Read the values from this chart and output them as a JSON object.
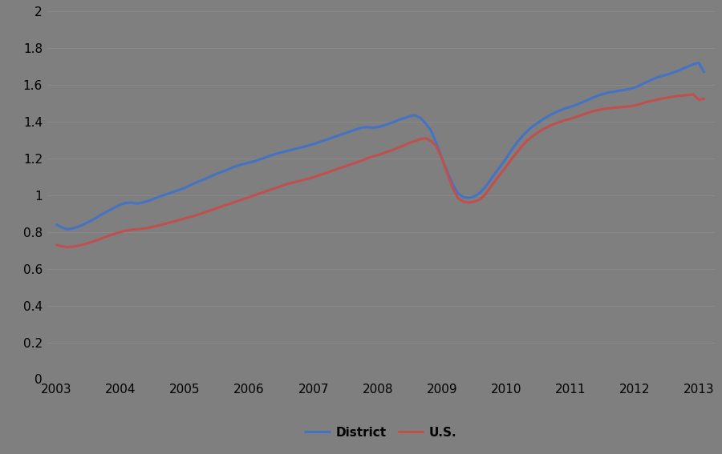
{
  "background_color": "#7f7f7f",
  "plot_bg_color": "#7f7f7f",
  "district_color": "#4472C4",
  "us_color": "#C0504D",
  "district_linewidth": 2.2,
  "us_linewidth": 2.2,
  "ylim": [
    0,
    2.0
  ],
  "xlim_start": 2002.85,
  "xlim_end": 2013.25,
  "yticks": [
    0,
    0.2,
    0.4,
    0.6,
    0.8,
    1.0,
    1.2,
    1.4,
    1.6,
    1.8,
    2.0
  ],
  "xtick_labels": [
    "2003",
    "2004",
    "2005",
    "2006",
    "2007",
    "2008",
    "2009",
    "2010",
    "2011",
    "2012",
    "2013"
  ],
  "xtick_positions": [
    2003,
    2004,
    2005,
    2006,
    2007,
    2008,
    2009,
    2010,
    2011,
    2012,
    2013
  ],
  "legend_labels": [
    "District",
    "U.S."
  ],
  "district_x": [
    2003.0,
    2003.083,
    2003.167,
    2003.25,
    2003.333,
    2003.417,
    2003.5,
    2003.583,
    2003.667,
    2003.75,
    2003.833,
    2003.917,
    2004.0,
    2004.083,
    2004.167,
    2004.25,
    2004.333,
    2004.417,
    2004.5,
    2004.583,
    2004.667,
    2004.75,
    2004.833,
    2004.917,
    2005.0,
    2005.083,
    2005.167,
    2005.25,
    2005.333,
    2005.417,
    2005.5,
    2005.583,
    2005.667,
    2005.75,
    2005.833,
    2005.917,
    2006.0,
    2006.083,
    2006.167,
    2006.25,
    2006.333,
    2006.417,
    2006.5,
    2006.583,
    2006.667,
    2006.75,
    2006.833,
    2006.917,
    2007.0,
    2007.083,
    2007.167,
    2007.25,
    2007.333,
    2007.417,
    2007.5,
    2007.583,
    2007.667,
    2007.75,
    2007.833,
    2007.917,
    2008.0,
    2008.083,
    2008.167,
    2008.25,
    2008.333,
    2008.417,
    2008.5,
    2008.583,
    2008.667,
    2008.75,
    2008.833,
    2008.917,
    2009.0,
    2009.083,
    2009.167,
    2009.25,
    2009.333,
    2009.417,
    2009.5,
    2009.583,
    2009.667,
    2009.75,
    2009.833,
    2009.917,
    2010.0,
    2010.083,
    2010.167,
    2010.25,
    2010.333,
    2010.417,
    2010.5,
    2010.583,
    2010.667,
    2010.75,
    2010.833,
    2010.917,
    2011.0,
    2011.083,
    2011.167,
    2011.25,
    2011.333,
    2011.417,
    2011.5,
    2011.583,
    2011.667,
    2011.75,
    2011.833,
    2011.917,
    2012.0,
    2012.083,
    2012.167,
    2012.25,
    2012.333,
    2012.417,
    2012.5,
    2012.583,
    2012.667,
    2012.75,
    2012.833,
    2012.917,
    2013.0,
    2013.083
  ],
  "district_y": [
    0.84,
    0.825,
    0.815,
    0.82,
    0.828,
    0.84,
    0.855,
    0.87,
    0.888,
    0.905,
    0.92,
    0.935,
    0.95,
    0.958,
    0.96,
    0.955,
    0.96,
    0.968,
    0.978,
    0.99,
    1.0,
    1.01,
    1.02,
    1.03,
    1.04,
    1.055,
    1.068,
    1.08,
    1.092,
    1.105,
    1.118,
    1.128,
    1.14,
    1.152,
    1.162,
    1.17,
    1.178,
    1.185,
    1.195,
    1.205,
    1.215,
    1.225,
    1.233,
    1.24,
    1.248,
    1.255,
    1.262,
    1.27,
    1.278,
    1.288,
    1.298,
    1.308,
    1.318,
    1.328,
    1.338,
    1.348,
    1.358,
    1.368,
    1.37,
    1.368,
    1.37,
    1.378,
    1.388,
    1.398,
    1.41,
    1.42,
    1.43,
    1.435,
    1.42,
    1.39,
    1.35,
    1.28,
    1.2,
    1.13,
    1.06,
    1.01,
    0.99,
    0.985,
    0.992,
    1.01,
    1.04,
    1.08,
    1.12,
    1.16,
    1.2,
    1.245,
    1.285,
    1.32,
    1.35,
    1.375,
    1.395,
    1.415,
    1.432,
    1.448,
    1.46,
    1.472,
    1.48,
    1.49,
    1.502,
    1.515,
    1.528,
    1.54,
    1.55,
    1.558,
    1.562,
    1.568,
    1.572,
    1.578,
    1.585,
    1.598,
    1.612,
    1.625,
    1.638,
    1.648,
    1.655,
    1.665,
    1.675,
    1.688,
    1.7,
    1.712,
    1.72,
    1.67
  ],
  "us_x": [
    2003.0,
    2003.083,
    2003.167,
    2003.25,
    2003.333,
    2003.417,
    2003.5,
    2003.583,
    2003.667,
    2003.75,
    2003.833,
    2003.917,
    2004.0,
    2004.083,
    2004.167,
    2004.25,
    2004.333,
    2004.417,
    2004.5,
    2004.583,
    2004.667,
    2004.75,
    2004.833,
    2004.917,
    2005.0,
    2005.083,
    2005.167,
    2005.25,
    2005.333,
    2005.417,
    2005.5,
    2005.583,
    2005.667,
    2005.75,
    2005.833,
    2005.917,
    2006.0,
    2006.083,
    2006.167,
    2006.25,
    2006.333,
    2006.417,
    2006.5,
    2006.583,
    2006.667,
    2006.75,
    2006.833,
    2006.917,
    2007.0,
    2007.083,
    2007.167,
    2007.25,
    2007.333,
    2007.417,
    2007.5,
    2007.583,
    2007.667,
    2007.75,
    2007.833,
    2007.917,
    2008.0,
    2008.083,
    2008.167,
    2008.25,
    2008.333,
    2008.417,
    2008.5,
    2008.583,
    2008.667,
    2008.75,
    2008.833,
    2008.917,
    2009.0,
    2009.083,
    2009.167,
    2009.25,
    2009.333,
    2009.417,
    2009.5,
    2009.583,
    2009.667,
    2009.75,
    2009.833,
    2009.917,
    2010.0,
    2010.083,
    2010.167,
    2010.25,
    2010.333,
    2010.417,
    2010.5,
    2010.583,
    2010.667,
    2010.75,
    2010.833,
    2010.917,
    2011.0,
    2011.083,
    2011.167,
    2011.25,
    2011.333,
    2011.417,
    2011.5,
    2011.583,
    2011.667,
    2011.75,
    2011.833,
    2011.917,
    2012.0,
    2012.083,
    2012.167,
    2012.25,
    2012.333,
    2012.417,
    2012.5,
    2012.583,
    2012.667,
    2012.75,
    2012.833,
    2012.917,
    2013.0,
    2013.083
  ],
  "us_y": [
    0.73,
    0.722,
    0.718,
    0.72,
    0.725,
    0.732,
    0.74,
    0.75,
    0.76,
    0.772,
    0.782,
    0.792,
    0.8,
    0.808,
    0.812,
    0.815,
    0.818,
    0.822,
    0.828,
    0.835,
    0.842,
    0.85,
    0.858,
    0.866,
    0.874,
    0.882,
    0.89,
    0.9,
    0.91,
    0.92,
    0.93,
    0.94,
    0.95,
    0.96,
    0.97,
    0.98,
    0.99,
    1.0,
    1.01,
    1.02,
    1.03,
    1.04,
    1.05,
    1.06,
    1.068,
    1.075,
    1.082,
    1.09,
    1.098,
    1.108,
    1.118,
    1.128,
    1.138,
    1.148,
    1.158,
    1.168,
    1.178,
    1.188,
    1.2,
    1.21,
    1.218,
    1.228,
    1.238,
    1.248,
    1.26,
    1.272,
    1.285,
    1.295,
    1.305,
    1.31,
    1.295,
    1.265,
    1.2,
    1.12,
    1.04,
    0.985,
    0.965,
    0.96,
    0.965,
    0.975,
    1.0,
    1.04,
    1.08,
    1.118,
    1.155,
    1.195,
    1.232,
    1.268,
    1.298,
    1.322,
    1.342,
    1.36,
    1.375,
    1.388,
    1.398,
    1.408,
    1.415,
    1.425,
    1.435,
    1.445,
    1.455,
    1.462,
    1.468,
    1.472,
    1.475,
    1.478,
    1.48,
    1.483,
    1.488,
    1.495,
    1.505,
    1.512,
    1.518,
    1.525,
    1.53,
    1.535,
    1.54,
    1.542,
    1.545,
    1.548,
    1.52,
    1.525
  ],
  "grid_color": "#909090",
  "grid_alpha": 0.6,
  "tick_fontsize": 11,
  "legend_fontsize": 11
}
